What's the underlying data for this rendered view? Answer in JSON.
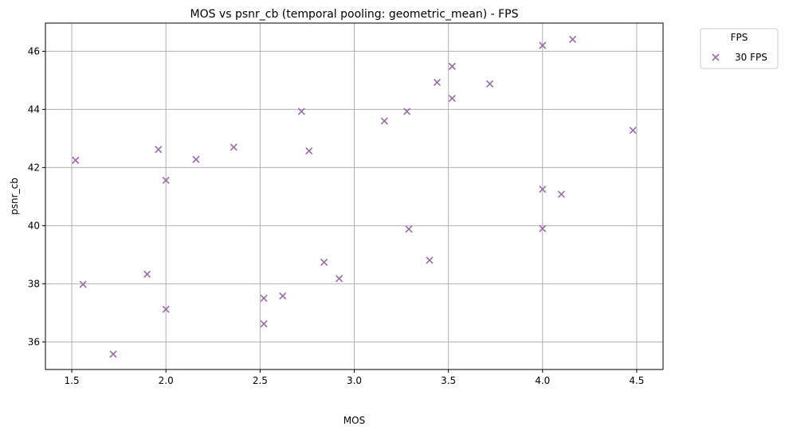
{
  "chart_data": {
    "type": "scatter",
    "title": "MOS vs psnr_cb (temporal pooling: geometric_mean) - FPS",
    "xlabel": "MOS",
    "ylabel": "psnr_cb",
    "xlim": [
      1.36,
      4.64
    ],
    "ylim": [
      35.05,
      46.97
    ],
    "xticks": [
      1.5,
      2.0,
      2.5,
      3.0,
      3.5,
      4.0,
      4.5
    ],
    "xtick_labels": [
      "1.5",
      "2.0",
      "2.5",
      "3.0",
      "3.5",
      "4.0",
      "4.5"
    ],
    "yticks": [
      36,
      38,
      40,
      42,
      44,
      46
    ],
    "ytick_labels": [
      "36",
      "38",
      "40",
      "42",
      "44",
      "46"
    ],
    "grid": true,
    "legend": {
      "title": "FPS",
      "placement": "outside-top-right"
    },
    "series": [
      {
        "name": "30 FPS",
        "marker": "x",
        "color": "#9b6aa8",
        "points": [
          [
            1.52,
            42.25
          ],
          [
            1.56,
            37.98
          ],
          [
            1.72,
            35.58
          ],
          [
            1.9,
            38.33
          ],
          [
            1.96,
            42.62
          ],
          [
            2.0,
            41.56
          ],
          [
            2.0,
            37.12
          ],
          [
            2.16,
            42.28
          ],
          [
            2.36,
            42.7
          ],
          [
            2.52,
            37.5
          ],
          [
            2.52,
            36.62
          ],
          [
            2.62,
            37.58
          ],
          [
            2.72,
            43.93
          ],
          [
            2.76,
            42.57
          ],
          [
            2.84,
            38.74
          ],
          [
            2.92,
            38.18
          ],
          [
            3.16,
            43.6
          ],
          [
            3.28,
            43.93
          ],
          [
            3.29,
            39.88
          ],
          [
            3.4,
            38.81
          ],
          [
            3.44,
            44.93
          ],
          [
            3.52,
            45.48
          ],
          [
            3.52,
            44.38
          ],
          [
            3.72,
            44.88
          ],
          [
            4.0,
            46.2
          ],
          [
            4.0,
            41.25
          ],
          [
            4.0,
            39.9
          ],
          [
            4.1,
            41.08
          ],
          [
            4.16,
            46.41
          ],
          [
            4.48,
            43.28
          ]
        ]
      }
    ]
  }
}
